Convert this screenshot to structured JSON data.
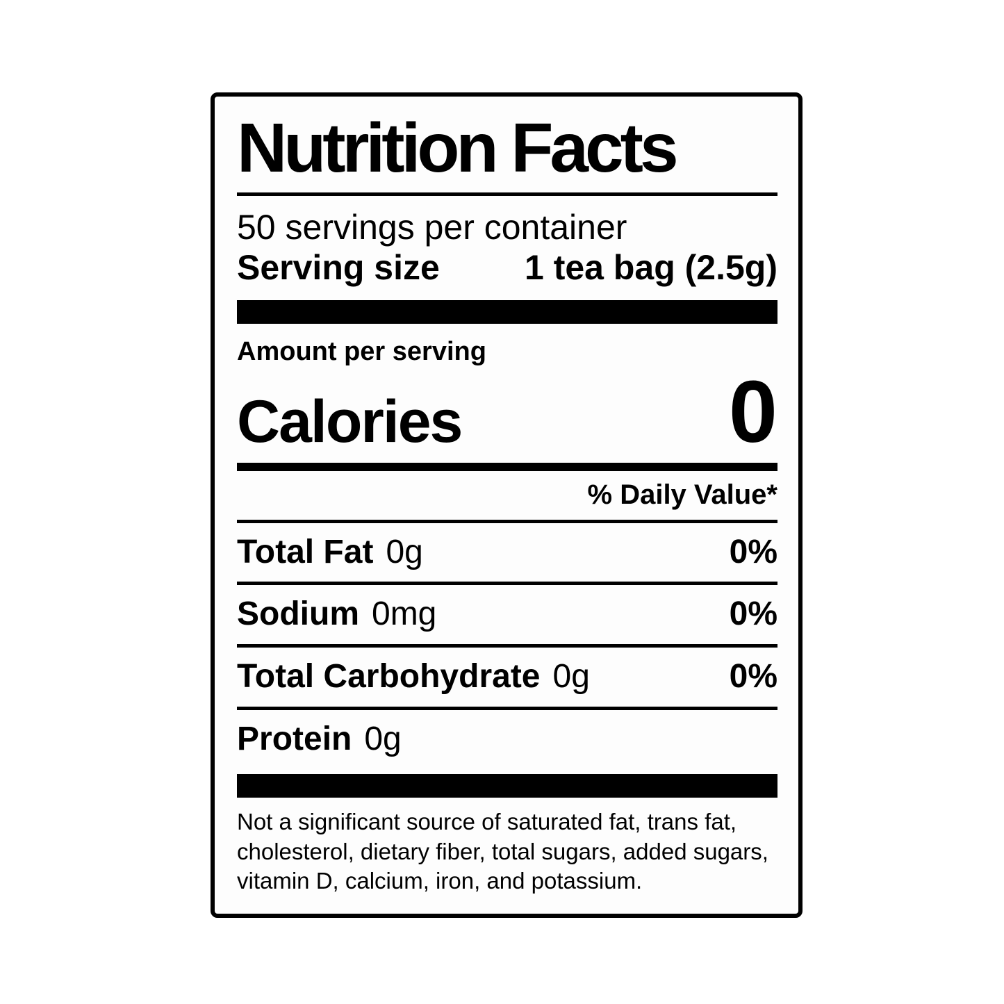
{
  "label": {
    "title": "Nutrition Facts",
    "servings_per_container": "50 servings per container",
    "serving_size_label": "Serving size",
    "serving_size_value": "1 tea bag (2.5g)",
    "amount_per_serving": "Amount per serving",
    "calories_label": "Calories",
    "calories_value": "0",
    "daily_value_header": "% Daily Value*",
    "nutrients": [
      {
        "name": "Total Fat",
        "amount": "0g",
        "dv": "0%"
      },
      {
        "name": "Sodium",
        "amount": "0mg",
        "dv": "0%"
      },
      {
        "name": "Total Carbohydrate",
        "amount": "0g",
        "dv": "0%"
      },
      {
        "name": "Protein",
        "amount": "0g",
        "dv": ""
      }
    ],
    "footnote": "Not a significant source of saturated fat, trans fat, cholesterol, dietary fiber, total sugars, added sugars, vitamin D, calcium, iron, and potassium.",
    "colors": {
      "text": "#000000",
      "background": "#ffffff",
      "label_background": "#fdfdfd",
      "rule": "#000000"
    }
  }
}
